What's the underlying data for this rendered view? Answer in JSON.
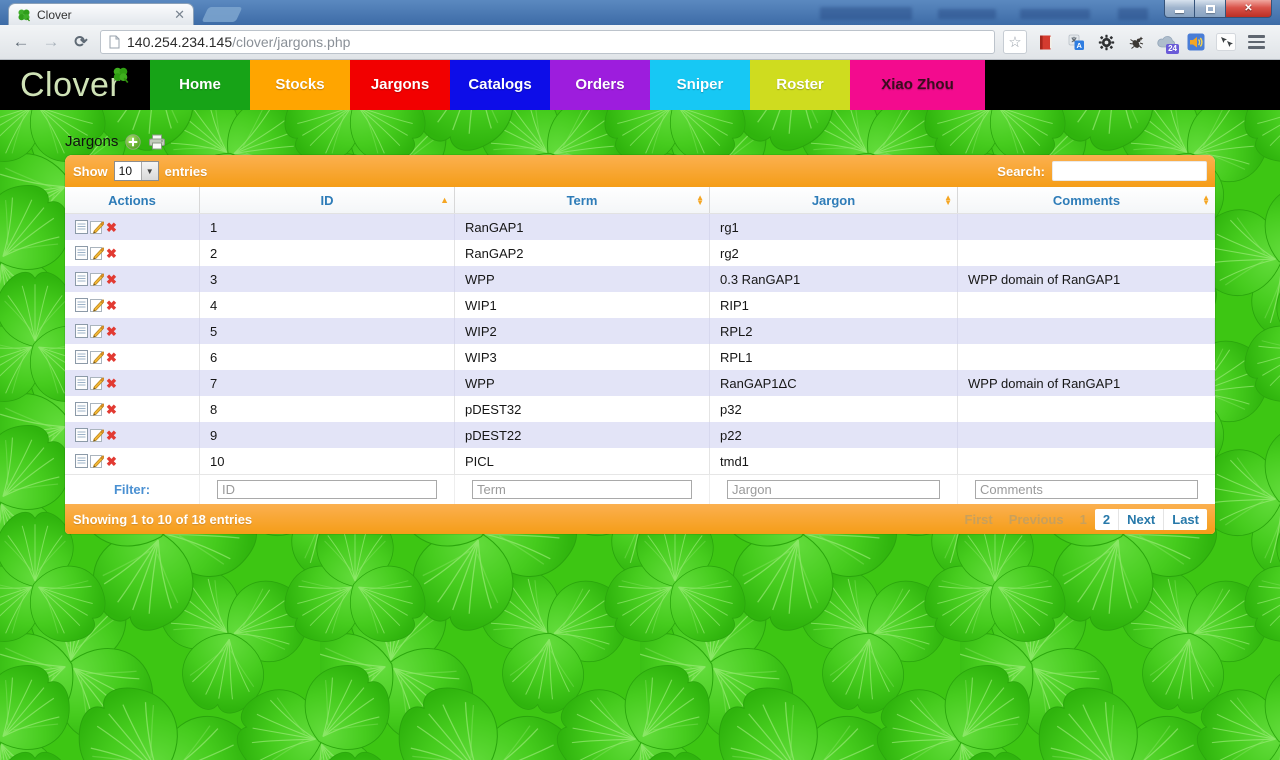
{
  "browser": {
    "tab_title": "Clover",
    "url_host": "140.254.234.145",
    "url_path": "/clover/jargons.php",
    "cloud_badge": "24"
  },
  "nav": {
    "logo": "Clover",
    "items": [
      {
        "label": "Home",
        "bg": "#17a317",
        "color": "#ffffff"
      },
      {
        "label": "Stocks",
        "bg": "#ffa500",
        "color": "#ffffff"
      },
      {
        "label": "Jargons",
        "bg": "#f20000",
        "color": "#ffffff"
      },
      {
        "label": "Catalogs",
        "bg": "#0d0de8",
        "color": "#ffffff"
      },
      {
        "label": "Orders",
        "bg": "#9d1ddd",
        "color": "#ffffff"
      },
      {
        "label": "Sniper",
        "bg": "#17c8f4",
        "color": "#ffffff"
      },
      {
        "label": "Roster",
        "bg": "#cfdc1f",
        "color": "#ffffff"
      },
      {
        "label": "Xiao Zhou",
        "bg": "#f30b8e",
        "color": "#3a0d1e"
      }
    ]
  },
  "page": {
    "title": "Jargons",
    "show_label": "Show",
    "entries_label": "entries",
    "page_size": "10",
    "search_label": "Search:",
    "filter_label": "Filter:",
    "footer_status": "Showing 1 to 10 of 18 entries"
  },
  "pagination": [
    {
      "label": "First",
      "state": "disabled"
    },
    {
      "label": "Previous",
      "state": "disabled"
    },
    {
      "label": "1",
      "state": "current"
    },
    {
      "label": "2",
      "state": "page"
    },
    {
      "label": "Next",
      "state": "page"
    },
    {
      "label": "Last",
      "state": "page"
    }
  ],
  "table": {
    "columns": [
      {
        "label": "Actions",
        "sort": "none"
      },
      {
        "label": "ID",
        "sort": "asc"
      },
      {
        "label": "Term",
        "sort": "both"
      },
      {
        "label": "Jargon",
        "sort": "both"
      },
      {
        "label": "Comments",
        "sort": "both"
      }
    ],
    "filters": [
      "ID",
      "Term",
      "Jargon",
      "Comments"
    ],
    "rows": [
      {
        "id": "1",
        "term": "RanGAP1",
        "jargon": "rg1",
        "comments": ""
      },
      {
        "id": "2",
        "term": "RanGAP2",
        "jargon": "rg2",
        "comments": ""
      },
      {
        "id": "3",
        "term": "WPP",
        "jargon": "0.3 RanGAP1",
        "comments": "WPP domain of RanGAP1"
      },
      {
        "id": "4",
        "term": "WIP1",
        "jargon": "RIP1",
        "comments": ""
      },
      {
        "id": "5",
        "term": "WIP2",
        "jargon": "RPL2",
        "comments": ""
      },
      {
        "id": "6",
        "term": "WIP3",
        "jargon": "RPL1",
        "comments": ""
      },
      {
        "id": "7",
        "term": "WPP",
        "jargon": "RanGAP1ΔC",
        "comments": "WPP domain of RanGAP1"
      },
      {
        "id": "8",
        "term": "pDEST32",
        "jargon": "p32",
        "comments": ""
      },
      {
        "id": "9",
        "term": "pDEST22",
        "jargon": "p22",
        "comments": ""
      },
      {
        "id": "10",
        "term": "PICL",
        "jargon": "tmd1",
        "comments": ""
      }
    ]
  },
  "colors": {
    "accent_orange": "#f7a11f",
    "row_stripe": "#e3e4f7",
    "header_text": "#2e7cb8",
    "background_green": "#3dc613"
  }
}
